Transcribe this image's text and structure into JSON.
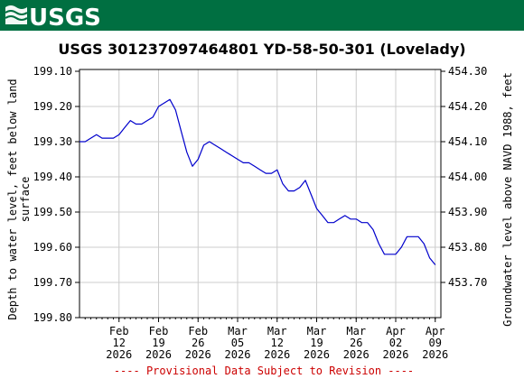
{
  "header": {
    "logo_text": "USGS",
    "bar_color": "#006f41"
  },
  "chart_data": {
    "type": "line",
    "title": "USGS 301237097464801 YD-58-50-301 (Lovelady)",
    "ylabel_left_line1": "Depth to water level, feet below land",
    "ylabel_left_line2": "surface",
    "ylabel_right": "Groundwater level above NAVD 1988, feet",
    "y_left_range": [
      199.1,
      199.8
    ],
    "y_left_inverted": true,
    "y_left_ticks": [
      "199.10",
      "199.20",
      "199.30",
      "199.40",
      "199.50",
      "199.60",
      "199.70",
      "199.80"
    ],
    "y_right_ticks": [
      "454.30",
      "454.20",
      "454.10",
      "454.00",
      "453.90",
      "453.80",
      "453.70"
    ],
    "y_right_values": [
      454.3,
      454.2,
      454.1,
      454.0,
      453.9,
      453.8,
      453.7
    ],
    "x_range": [
      "2026-02-05",
      "2026-04-10"
    ],
    "x_ticks": [
      {
        "date": "2026-02-12",
        "l1": "Feb",
        "l2": "12",
        "l3": "2026"
      },
      {
        "date": "2026-02-19",
        "l1": "Feb",
        "l2": "19",
        "l3": "2026"
      },
      {
        "date": "2026-02-26",
        "l1": "Feb",
        "l2": "26",
        "l3": "2026"
      },
      {
        "date": "2026-03-05",
        "l1": "Mar",
        "l2": "05",
        "l3": "2026"
      },
      {
        "date": "2026-03-12",
        "l1": "Mar",
        "l2": "12",
        "l3": "2026"
      },
      {
        "date": "2026-03-19",
        "l1": "Mar",
        "l2": "19",
        "l3": "2026"
      },
      {
        "date": "2026-03-26",
        "l1": "Mar",
        "l2": "26",
        "l3": "2026"
      },
      {
        "date": "2026-04-02",
        "l1": "Apr",
        "l2": "02",
        "l3": "2026"
      },
      {
        "date": "2026-04-09",
        "l1": "Apr",
        "l2": "09",
        "l3": "2026"
      }
    ],
    "grid": true,
    "line_color": "#0000cc",
    "provisional_note": "---- Provisional Data Subject to Revision ----",
    "provisional_color": "#cc0000",
    "series": [
      {
        "points": [
          [
            "2026-02-05",
            199.3
          ],
          [
            "2026-02-06",
            199.3
          ],
          [
            "2026-02-07",
            199.29
          ],
          [
            "2026-02-08",
            199.28
          ],
          [
            "2026-02-09",
            199.29
          ],
          [
            "2026-02-10",
            199.29
          ],
          [
            "2026-02-11",
            199.29
          ],
          [
            "2026-02-12",
            199.28
          ],
          [
            "2026-02-13",
            199.26
          ],
          [
            "2026-02-14",
            199.24
          ],
          [
            "2026-02-15",
            199.25
          ],
          [
            "2026-02-16",
            199.25
          ],
          [
            "2026-02-17",
            199.24
          ],
          [
            "2026-02-18",
            199.23
          ],
          [
            "2026-02-19",
            199.2
          ],
          [
            "2026-02-20",
            199.19
          ],
          [
            "2026-02-21",
            199.18
          ],
          [
            "2026-02-22",
            199.21
          ],
          [
            "2026-02-23",
            199.27
          ],
          [
            "2026-02-24",
            199.33
          ],
          [
            "2026-02-25",
            199.37
          ],
          [
            "2026-02-26",
            199.35
          ],
          [
            "2026-02-27",
            199.31
          ],
          [
            "2026-02-28",
            199.3
          ],
          [
            "2026-03-01",
            199.31
          ],
          [
            "2026-03-02",
            199.32
          ],
          [
            "2026-03-03",
            199.33
          ],
          [
            "2026-03-04",
            199.34
          ],
          [
            "2026-03-05",
            199.35
          ],
          [
            "2026-03-06",
            199.36
          ],
          [
            "2026-03-07",
            199.36
          ],
          [
            "2026-03-08",
            199.37
          ],
          [
            "2026-03-09",
            199.38
          ],
          [
            "2026-03-10",
            199.39
          ],
          [
            "2026-03-11",
            199.39
          ],
          [
            "2026-03-12",
            199.38
          ],
          [
            "2026-03-13",
            199.42
          ],
          [
            "2026-03-14",
            199.44
          ],
          [
            "2026-03-15",
            199.44
          ],
          [
            "2026-03-16",
            199.43
          ],
          [
            "2026-03-17",
            199.41
          ],
          [
            "2026-03-18",
            199.45
          ],
          [
            "2026-03-19",
            199.49
          ],
          [
            "2026-03-20",
            199.51
          ],
          [
            "2026-03-21",
            199.53
          ],
          [
            "2026-03-22",
            199.53
          ],
          [
            "2026-03-23",
            199.52
          ],
          [
            "2026-03-24",
            199.51
          ],
          [
            "2026-03-25",
            199.52
          ],
          [
            "2026-03-26",
            199.52
          ],
          [
            "2026-03-27",
            199.53
          ],
          [
            "2026-03-28",
            199.53
          ],
          [
            "2026-03-29",
            199.55
          ],
          [
            "2026-03-30",
            199.59
          ],
          [
            "2026-03-31",
            199.62
          ],
          [
            "2026-04-01",
            199.62
          ],
          [
            "2026-04-02",
            199.62
          ],
          [
            "2026-04-03",
            199.6
          ],
          [
            "2026-04-04",
            199.57
          ],
          [
            "2026-04-05",
            199.57
          ],
          [
            "2026-04-06",
            199.57
          ],
          [
            "2026-04-07",
            199.59
          ],
          [
            "2026-04-08",
            199.63
          ],
          [
            "2026-04-09",
            199.65
          ]
        ]
      }
    ]
  }
}
